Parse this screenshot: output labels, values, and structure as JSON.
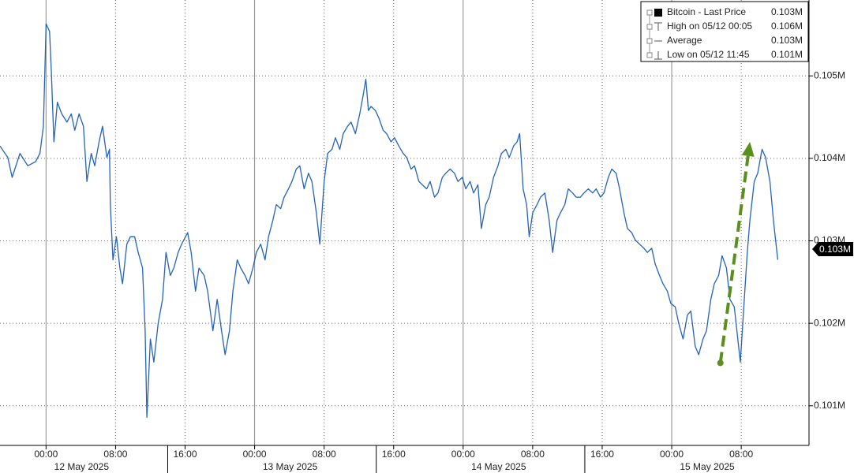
{
  "chart_data": {
    "type": "line",
    "legend": [
      {
        "label": "Bitcoin - Last Price",
        "value": "0.103M"
      },
      {
        "label": "High on 05/12 00:05",
        "value": "0.106M"
      },
      {
        "label": "Average",
        "value": "0.103M"
      },
      {
        "label": "Low on 05/12 11:45",
        "value": "0.101M"
      }
    ],
    "last_price": {
      "value": 0.1029,
      "label": "0.103M"
    },
    "xlim": [
      -5.3,
      87.8
    ],
    "xticks": [
      {
        "value": 0,
        "label": "00:00"
      },
      {
        "value": 8,
        "label": "08:00"
      },
      {
        "value": 16,
        "label": "16:00"
      },
      {
        "value": 24,
        "label": "00:00"
      },
      {
        "value": 32,
        "label": "08:00"
      },
      {
        "value": 40,
        "label": "16:00"
      },
      {
        "value": 48,
        "label": "00:00"
      },
      {
        "value": 56,
        "label": "08:00"
      },
      {
        "value": 64,
        "label": "16:00"
      },
      {
        "value": 72,
        "label": "00:00"
      },
      {
        "value": 80,
        "label": "08:00"
      }
    ],
    "x_day_labels": [
      {
        "value": 0,
        "label": "12 May 2025"
      },
      {
        "value": 24,
        "label": "13 May 2025"
      },
      {
        "value": 48,
        "label": "14 May 2025"
      },
      {
        "value": 72,
        "label": "15 May 2025"
      }
    ],
    "ylim": [
      0.10052,
      0.10592
    ],
    "yticks": [
      {
        "value": 0.101,
        "label": "0.101M"
      },
      {
        "value": 0.102,
        "label": "0.102M"
      },
      {
        "value": 0.103,
        "label": "0.103M"
      },
      {
        "value": 0.104,
        "label": "0.104M"
      },
      {
        "value": 0.105,
        "label": "0.105M"
      }
    ],
    "grid": true,
    "arrow": {
      "x": [
        77.6,
        81.0
      ],
      "y": [
        0.10152,
        0.1042
      ],
      "color": "#5a8f1e"
    },
    "series": [
      {
        "name": "Bitcoin - Last Price",
        "color": "#2563b8",
        "x": [
          -5.3,
          -4.4,
          -3.9,
          -3.0,
          -2.1,
          -1.2,
          -0.7,
          -0.3,
          0,
          0.4,
          0.6,
          0.9,
          1.3,
          1.8,
          2.4,
          2.9,
          3.3,
          3.8,
          4.3,
          4.7,
          5.2,
          5.6,
          6.1,
          6.5,
          7.0,
          7.3,
          7.4,
          7.7,
          8.1,
          8.5,
          8.8,
          9.3,
          9.7,
          10.2,
          10.6,
          11.1,
          11.4,
          11.6,
          12.0,
          12.4,
          12.9,
          13.4,
          13.8,
          14.3,
          14.7,
          15.2,
          15.6,
          16.3,
          16.7,
          17.2,
          17.6,
          18.2,
          18.6,
          19.2,
          19.7,
          20.2,
          20.6,
          21.1,
          21.5,
          22.0,
          22.4,
          22.9,
          23.3,
          23.8,
          24.2,
          24.7,
          25.2,
          25.6,
          26.1,
          26.5,
          27.0,
          27.4,
          27.9,
          28.3,
          28.8,
          29.2,
          29.7,
          30.2,
          30.6,
          31.1,
          31.5,
          32.0,
          32.4,
          32.9,
          33.3,
          33.8,
          34.2,
          34.7,
          35.1,
          35.6,
          36.1,
          36.5,
          36.8,
          37.1,
          37.4,
          37.9,
          38.3,
          38.8,
          39.2,
          39.7,
          40.1,
          40.6,
          41.1,
          41.5,
          42.0,
          42.4,
          42.9,
          43.3,
          43.8,
          44.2,
          44.7,
          45.1,
          45.6,
          46.0,
          46.5,
          47.0,
          47.4,
          47.9,
          48.3,
          48.8,
          49.2,
          49.7,
          50.1,
          50.6,
          51.0,
          51.5,
          52.0,
          52.4,
          52.9,
          53.3,
          53.8,
          54.2,
          54.5,
          54.9,
          55.3,
          55.6,
          56.0,
          56.5,
          56.9,
          57.4,
          57.9,
          58.3,
          58.8,
          59.2,
          59.7,
          60.1,
          60.6,
          61.0,
          61.5,
          61.9,
          62.4,
          62.9,
          63.3,
          63.8,
          64.2,
          64.7,
          65.1,
          65.6,
          66.0,
          66.5,
          66.9,
          67.4,
          67.8,
          68.3,
          68.8,
          69.2,
          69.7,
          70.1,
          70.6,
          71.0,
          71.5,
          71.9,
          72.4,
          72.8,
          73.3,
          73.8,
          74.2,
          74.7,
          75.1,
          75.6,
          76.0,
          76.5,
          76.9,
          77.4,
          77.8,
          78.3,
          78.7,
          79.2,
          79.7,
          79.9,
          80.3,
          80.7,
          81.0,
          81.5,
          81.9,
          82.4,
          82.8,
          83.3,
          83.7,
          84.2
        ],
        "values": [
          0.10415,
          0.10401,
          0.10377,
          0.10406,
          0.10391,
          0.10396,
          0.10406,
          0.10439,
          0.10563,
          0.10554,
          0.10506,
          0.1042,
          0.10468,
          0.10454,
          0.10444,
          0.10454,
          0.10434,
          0.10454,
          0.10439,
          0.10372,
          0.10406,
          0.10391,
          0.1042,
          0.10439,
          0.10401,
          0.10411,
          0.10344,
          0.10277,
          0.10305,
          0.10267,
          0.10248,
          0.10296,
          0.10305,
          0.10305,
          0.10286,
          0.10267,
          0.10191,
          0.10086,
          0.10181,
          0.10153,
          0.102,
          0.10229,
          0.10286,
          0.10258,
          0.10267,
          0.10286,
          0.10296,
          0.1031,
          0.10286,
          0.10239,
          0.10267,
          0.10258,
          0.10239,
          0.10191,
          0.10229,
          0.10191,
          0.10162,
          0.10191,
          0.10239,
          0.10277,
          0.10267,
          0.10258,
          0.10248,
          0.10267,
          0.10286,
          0.10296,
          0.10277,
          0.10305,
          0.10325,
          0.10344,
          0.10339,
          0.10353,
          0.10363,
          0.10372,
          0.10387,
          0.10391,
          0.10363,
          0.10382,
          0.10372,
          0.10334,
          0.10296,
          0.10372,
          0.10406,
          0.10411,
          0.10425,
          0.10411,
          0.1043,
          0.10439,
          0.10444,
          0.1043,
          0.10454,
          0.10477,
          0.10496,
          0.10458,
          0.10463,
          0.10458,
          0.10449,
          0.10434,
          0.1043,
          0.1042,
          0.10425,
          0.10415,
          0.10406,
          0.10401,
          0.10387,
          0.10391,
          0.10372,
          0.10368,
          0.10363,
          0.10372,
          0.10353,
          0.10358,
          0.10377,
          0.10382,
          0.10387,
          0.10382,
          0.10372,
          0.10377,
          0.10363,
          0.10372,
          0.10358,
          0.10368,
          0.10315,
          0.10344,
          0.10353,
          0.10377,
          0.10391,
          0.10406,
          0.10411,
          0.10401,
          0.10415,
          0.1042,
          0.1043,
          0.10363,
          0.10344,
          0.10305,
          0.10334,
          0.10344,
          0.10353,
          0.10358,
          0.10325,
          0.10286,
          0.10325,
          0.10334,
          0.10344,
          0.10363,
          0.10358,
          0.10353,
          0.10353,
          0.10358,
          0.10363,
          0.10358,
          0.10363,
          0.10353,
          0.10358,
          0.10377,
          0.10387,
          0.10382,
          0.10363,
          0.10334,
          0.10315,
          0.1031,
          0.10301,
          0.10296,
          0.10291,
          0.10286,
          0.10291,
          0.10272,
          0.10258,
          0.10248,
          0.10239,
          0.10224,
          0.1022,
          0.102,
          0.10181,
          0.1021,
          0.10215,
          0.10172,
          0.10162,
          0.10181,
          0.10191,
          0.10229,
          0.10248,
          0.10258,
          0.10282,
          0.10267,
          0.10229,
          0.1022,
          0.10172,
          0.10153,
          0.1022,
          0.10286,
          0.10325,
          0.10372,
          0.10382,
          0.10411,
          0.10401,
          0.10372,
          0.10325,
          0.10277
        ]
      }
    ]
  }
}
